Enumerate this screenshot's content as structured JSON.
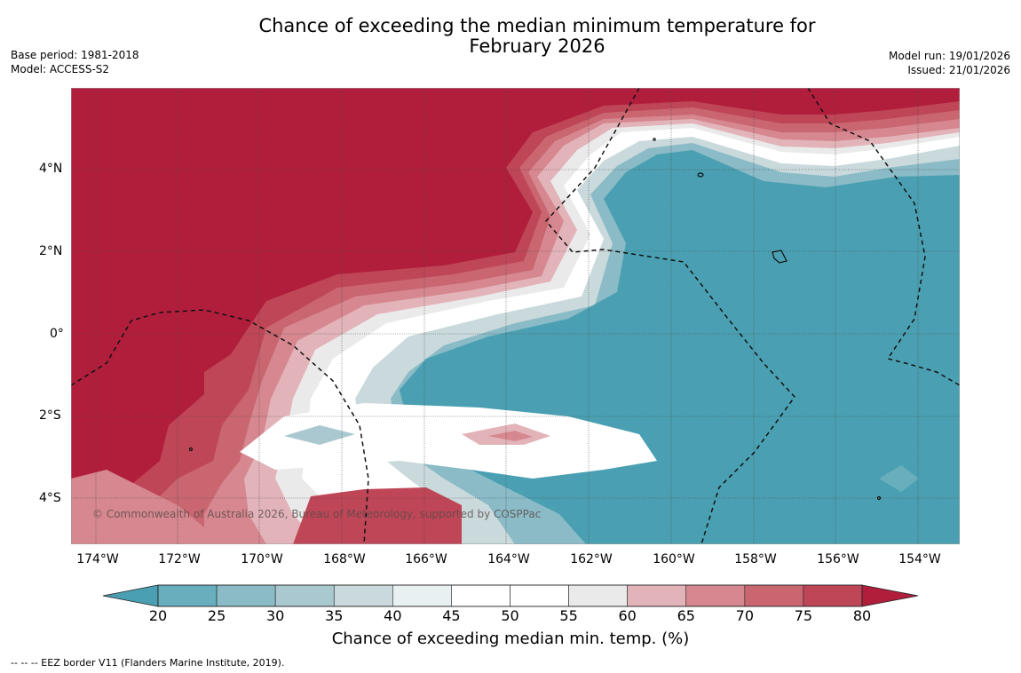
{
  "title_line1": "Chance of exceeding the median minimum temperature for",
  "title_line2": "February 2026",
  "base_period": "Base period: 1981-2018",
  "model": "Model: ACCESS-S2",
  "model_run": "Model run: 19/01/2026",
  "issued": "Issued: 21/01/2026",
  "lat_labels": [
    "4°N",
    "2°N",
    "0°",
    "2°S",
    "4°S"
  ],
  "lon_labels": [
    "174°W",
    "172°W",
    "170°W",
    "168°W",
    "166°W",
    "164°W",
    "162°W",
    "160°W",
    "158°W",
    "156°W",
    "154°W"
  ],
  "colorbar": {
    "ticks": [
      "20",
      "25",
      "30",
      "35",
      "40",
      "45",
      "50",
      "55",
      "60",
      "65",
      "70",
      "75",
      "80"
    ],
    "colors": [
      "#4aa0b2",
      "#69aebd",
      "#8abbc6",
      "#aac8cf",
      "#c9d9dc",
      "#e9f0f1",
      "#ffffff",
      "#ffffff",
      "#eaeaea",
      "#e2b4b9",
      "#d6878f",
      "#c96670",
      "#bf4656",
      "#b11e3b"
    ],
    "label": "Chance of exceeding median min. temp. (%)"
  },
  "map_colors": {
    "hot": "#b11e3b",
    "cool": "#4aa0b2"
  },
  "copyright": "© Commonwealth of Australia 2026, Bureau of Meteorology, supported by COSPPac",
  "legend_text": "--  --  -- EEZ border V11 (Flanders Marine Institute, 2019)."
}
